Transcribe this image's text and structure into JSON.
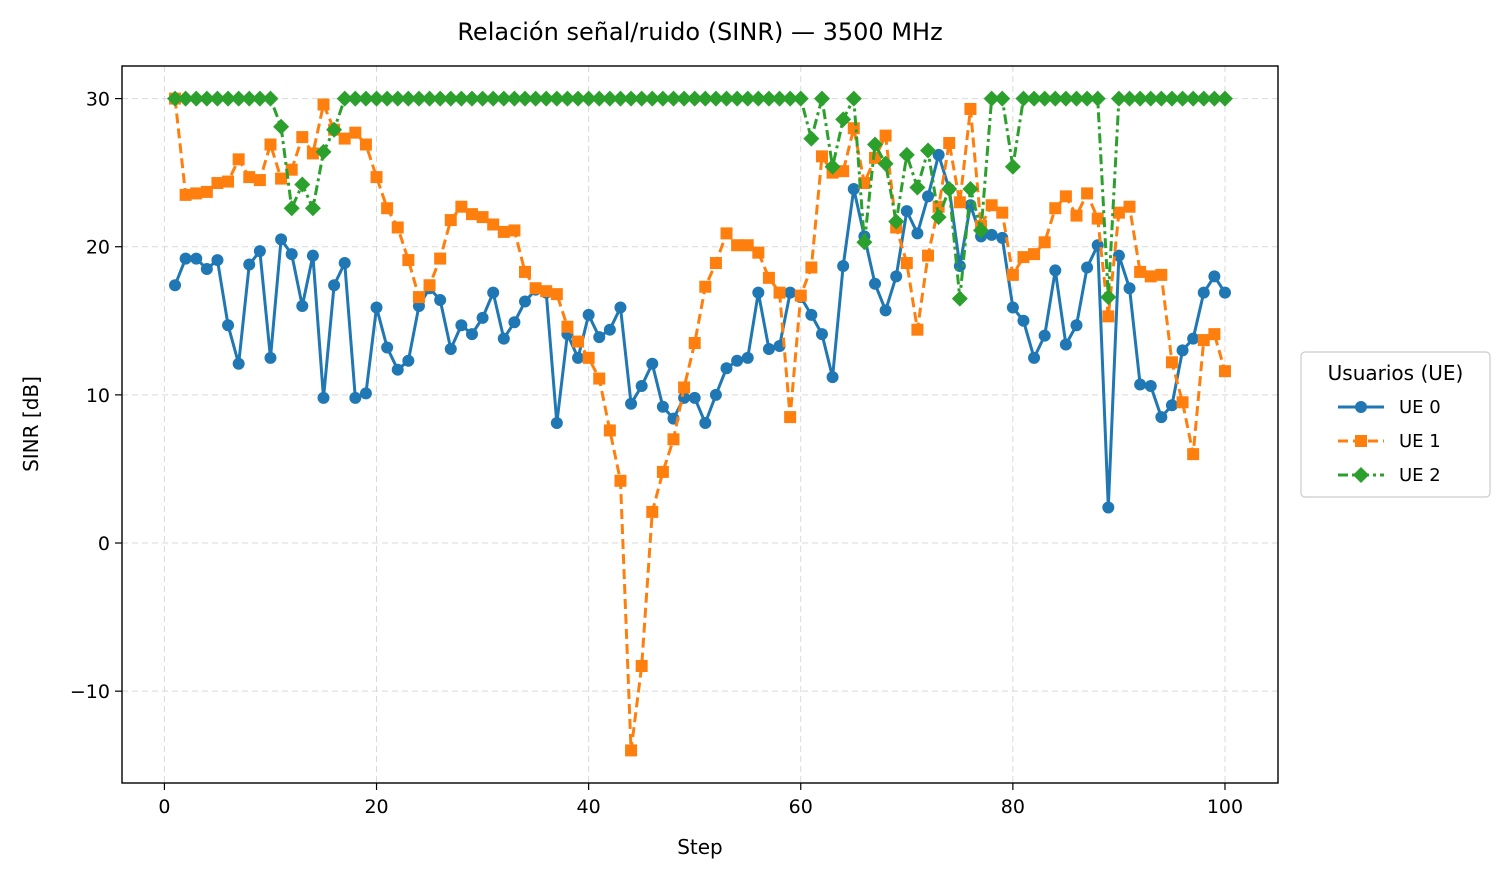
{
  "chart_data": {
    "type": "line",
    "title": "Relación señal/ruido (SINR) — 3500 MHz",
    "xlabel": "Step",
    "ylabel": "SINR [dB]",
    "xlim": [
      -4,
      105
    ],
    "ylim": [
      -16.2,
      32.2
    ],
    "xticks": [
      0,
      20,
      40,
      60,
      80,
      100
    ],
    "yticks": [
      -10,
      0,
      10,
      20,
      30
    ],
    "ytick_labels": [
      "−10",
      "0",
      "10",
      "20",
      "30"
    ],
    "grid": true,
    "legend": {
      "title": "Usuarios (UE)",
      "placement": "center-right-outside"
    },
    "x": [
      1,
      2,
      3,
      4,
      5,
      6,
      7,
      8,
      9,
      10,
      11,
      12,
      13,
      14,
      15,
      16,
      17,
      18,
      19,
      20,
      21,
      22,
      23,
      24,
      25,
      26,
      27,
      28,
      29,
      30,
      31,
      32,
      33,
      34,
      35,
      36,
      37,
      38,
      39,
      40,
      41,
      42,
      43,
      44,
      45,
      46,
      47,
      48,
      49,
      50,
      51,
      52,
      53,
      54,
      55,
      56,
      57,
      58,
      59,
      60,
      61,
      62,
      63,
      64,
      65,
      66,
      67,
      68,
      69,
      70,
      71,
      72,
      73,
      74,
      75,
      76,
      77,
      78,
      79,
      80,
      81,
      82,
      83,
      84,
      85,
      86,
      87,
      88,
      89,
      90,
      91,
      92,
      93,
      94,
      95,
      96,
      97,
      98,
      99,
      100
    ],
    "series": [
      {
        "name": "UE 0",
        "color": "#1f77b4",
        "marker": "circle",
        "linestyle": "solid",
        "values": [
          17.4,
          19.2,
          19.2,
          18.5,
          19.1,
          14.7,
          12.1,
          18.8,
          19.7,
          12.5,
          20.5,
          19.5,
          16.0,
          19.4,
          9.8,
          17.4,
          18.9,
          9.8,
          10.1,
          15.9,
          13.2,
          11.7,
          12.3,
          16.0,
          17.2,
          16.4,
          13.1,
          14.7,
          14.1,
          15.2,
          16.9,
          13.8,
          14.9,
          16.3,
          17.1,
          16.9,
          8.1,
          14.1,
          12.5,
          15.4,
          13.9,
          14.4,
          15.9,
          9.4,
          10.6,
          12.1,
          9.2,
          8.4,
          9.8,
          9.8,
          8.1,
          10.0,
          11.8,
          12.3,
          12.5,
          16.9,
          13.1,
          13.3,
          16.9,
          16.6,
          15.4,
          14.1,
          11.2,
          18.7,
          23.9,
          20.7,
          17.5,
          15.7,
          18.0,
          22.4,
          20.9,
          23.4,
          26.2,
          23.9,
          18.7,
          22.8,
          20.7,
          20.8,
          20.6,
          15.9,
          15.0,
          12.5,
          14.0,
          18.4,
          13.4,
          14.7,
          18.6,
          20.1,
          2.4,
          19.4,
          17.2,
          10.7,
          10.6,
          8.5,
          9.3,
          13.0,
          13.8,
          16.9,
          18.0,
          16.9
        ]
      },
      {
        "name": "UE 1",
        "color": "#ff7f0e",
        "marker": "square",
        "linestyle": "dashed",
        "values": [
          30.0,
          23.5,
          23.6,
          23.7,
          24.3,
          24.4,
          25.9,
          24.7,
          24.5,
          26.9,
          24.6,
          25.2,
          27.4,
          26.3,
          29.6,
          27.9,
          27.3,
          27.7,
          26.9,
          24.7,
          22.6,
          21.3,
          19.1,
          16.6,
          17.4,
          19.2,
          21.8,
          22.7,
          22.2,
          22.0,
          21.5,
          21.0,
          21.1,
          18.3,
          17.2,
          17.0,
          16.8,
          14.6,
          13.6,
          12.5,
          11.1,
          7.6,
          4.2,
          -14.0,
          -8.3,
          2.1,
          4.8,
          7.0,
          10.5,
          13.5,
          17.3,
          18.9,
          20.9,
          20.1,
          20.1,
          19.6,
          17.9,
          16.9,
          8.5,
          16.7,
          18.6,
          26.1,
          25.0,
          25.1,
          28.0,
          24.3,
          26.0,
          27.5,
          21.3,
          18.9,
          14.4,
          19.4,
          22.7,
          27.0,
          23.0,
          29.3,
          21.4,
          22.8,
          22.3,
          18.1,
          19.3,
          19.5,
          20.3,
          22.6,
          23.4,
          22.1,
          23.6,
          21.9,
          15.3,
          22.3,
          22.7,
          18.3,
          18.0,
          18.1,
          12.2,
          9.5,
          6.0,
          13.7,
          14.1,
          11.6
        ]
      },
      {
        "name": "UE 2",
        "color": "#2ca02c",
        "marker": "diamond",
        "linestyle": "dashdot",
        "values": [
          30.0,
          30.0,
          30.0,
          30.0,
          30.0,
          30.0,
          30.0,
          30.0,
          30.0,
          30.0,
          28.1,
          22.6,
          24.2,
          22.6,
          26.4,
          27.9,
          30.0,
          30.0,
          30.0,
          30.0,
          30.0,
          30.0,
          30.0,
          30.0,
          30.0,
          30.0,
          30.0,
          30.0,
          30.0,
          30.0,
          30.0,
          30.0,
          30.0,
          30.0,
          30.0,
          30.0,
          30.0,
          30.0,
          30.0,
          30.0,
          30.0,
          30.0,
          30.0,
          30.0,
          30.0,
          30.0,
          30.0,
          30.0,
          30.0,
          30.0,
          30.0,
          30.0,
          30.0,
          30.0,
          30.0,
          30.0,
          30.0,
          30.0,
          30.0,
          30.0,
          27.3,
          30.0,
          25.4,
          28.6,
          30.0,
          20.3,
          26.9,
          25.6,
          21.7,
          26.2,
          24.0,
          26.5,
          22.0,
          23.9,
          16.5,
          23.9,
          21.1,
          30.0,
          30.0,
          25.4,
          30.0,
          30.0,
          30.0,
          30.0,
          30.0,
          30.0,
          30.0,
          30.0,
          16.6,
          30.0,
          30.0,
          30.0,
          30.0,
          30.0,
          30.0,
          30.0,
          30.0,
          30.0,
          30.0,
          30.0
        ]
      }
    ]
  }
}
